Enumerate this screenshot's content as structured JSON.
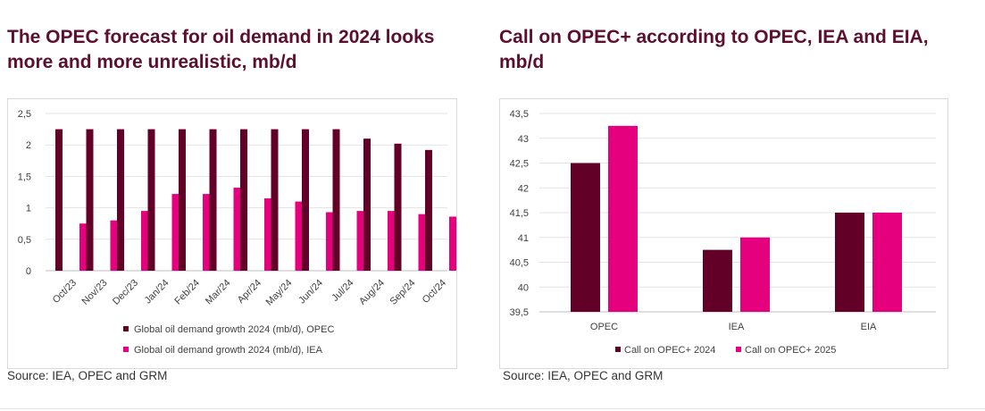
{
  "left": {
    "title_line1": "The OPEC forecast for oil demand in 2024 looks",
    "title_line2": "more and more unrealistic, mb/d",
    "source": "Source: IEA, OPEC  and GRM"
  },
  "right": {
    "title_line1": "Call on OPEC+ according to OPEC, IEA and EIA,",
    "title_line2": "mb/d",
    "source": "Source:  IEA, OPEC and GRM"
  },
  "colors": {
    "dark": "#620028",
    "pink": "#e5007d",
    "title": "#5c0f2e"
  },
  "chart_data": [
    {
      "type": "bar",
      "title": "The OPEC forecast for oil demand in 2024 looks more and more unrealistic, mb/d",
      "categories": [
        "Oct/23",
        "Nov/23",
        "Dec/23",
        "Jan/24",
        "Feb/24",
        "Mar/24",
        "Apr/24",
        "May/24",
        "Jun/24",
        "Jul/24",
        "Aug/24",
        "Sep/24",
        "Oct/24"
      ],
      "series": [
        {
          "name": "Global oil demand growth 2024 (mb/d), OPEC",
          "values": [
            2.25,
            2.25,
            2.25,
            2.25,
            2.25,
            2.25,
            2.25,
            2.25,
            2.25,
            2.25,
            2.1,
            2.02,
            1.92
          ]
        },
        {
          "name": "Global oil demand growth 2024 (mb/d), IEA",
          "values": [
            0.75,
            0.8,
            0.95,
            1.22,
            1.22,
            1.32,
            1.15,
            1.1,
            0.93,
            0.95,
            0.95,
            0.9,
            0.86
          ]
        }
      ],
      "yticks": [
        "0",
        "0,5",
        "1",
        "1,5",
        "2",
        "2,5"
      ],
      "ylim": [
        0,
        2.5
      ],
      "legend": "bottom"
    },
    {
      "type": "bar",
      "title": "Call on OPEC+ according to OPEC, IEA and EIA, mb/d",
      "categories": [
        "OPEC",
        "IEA",
        "EIA"
      ],
      "series": [
        {
          "name": "Call on OPEC+ 2024",
          "values": [
            42.5,
            40.75,
            41.5
          ]
        },
        {
          "name": "Call on OPEC+ 2025",
          "values": [
            43.25,
            41.0,
            41.5
          ]
        }
      ],
      "yticks": [
        "39,5",
        "40",
        "40,5",
        "41",
        "41,5",
        "42",
        "42,5",
        "43",
        "43,5"
      ],
      "ylim": [
        39.5,
        43.5
      ],
      "legend": "bottom"
    }
  ]
}
